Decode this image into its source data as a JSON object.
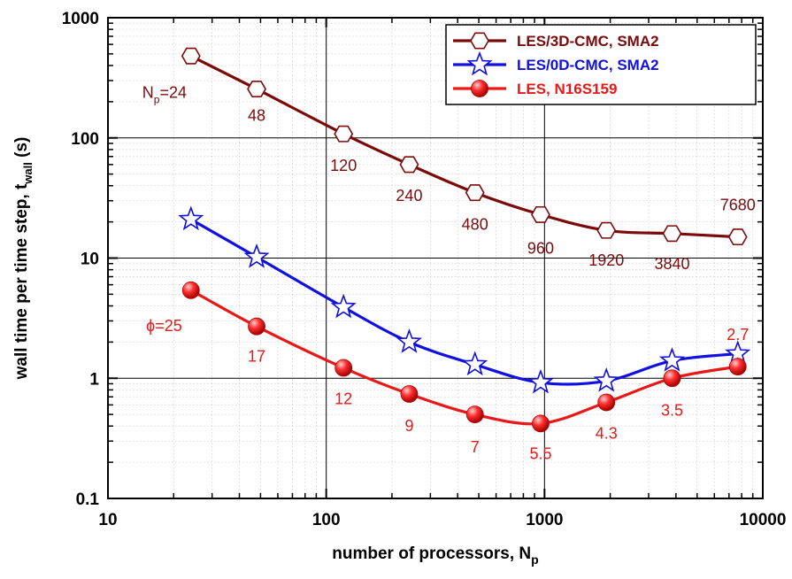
{
  "chart_data": {
    "type": "line",
    "x_scale": "log",
    "y_scale": "log",
    "xlim": [
      10,
      10000
    ],
    "ylim": [
      0.1,
      1000
    ],
    "grid": true,
    "legend_position": "top-right",
    "x_ticks": [
      "10",
      "100",
      "1000",
      "10000"
    ],
    "y_ticks": [
      "0.1",
      "1",
      "10",
      "100",
      "1000"
    ],
    "xlabel": "number of processors, N",
    "xlabel_sub": "p",
    "ylabel": "wall time per time step, t",
    "ylabel_sub": "wall",
    "ylabel_unit": " (s)",
    "series": [
      {
        "name": "LES/3D-CMC, SMA2",
        "color": "#7b0b0b",
        "marker": "hexagon",
        "x": [
          24,
          48,
          120,
          240,
          480,
          960,
          1920,
          3840,
          7680
        ],
        "y": [
          480,
          255,
          108,
          60,
          35,
          23,
          17,
          16,
          15
        ]
      },
      {
        "name": "LES/0D-CMC, SMA2",
        "color": "#1010e0",
        "marker": "star",
        "x": [
          24,
          48,
          120,
          240,
          480,
          960,
          1920,
          3840,
          7680
        ],
        "y": [
          21,
          10.2,
          3.9,
          2.0,
          1.3,
          0.92,
          0.95,
          1.4,
          1.6
        ]
      },
      {
        "name": "LES, N16S159",
        "color": "#e81818",
        "marker": "sphere",
        "x": [
          24,
          48,
          120,
          240,
          480,
          960,
          1920,
          3840,
          7680
        ],
        "y": [
          5.4,
          2.7,
          1.22,
          0.74,
          0.5,
          0.42,
          0.63,
          1.0,
          1.25
        ]
      }
    ],
    "annotations_np": {
      "color": "#7b0b0b",
      "prefix_main": "N",
      "prefix_sub": "p",
      "prefix_rest": "=24",
      "labels": [
        "48",
        "120",
        "240",
        "480",
        "960",
        "1920",
        "3840",
        "7680"
      ]
    },
    "annotations_phi": {
      "color": "#e81818",
      "prefix": "ϕ=25",
      "labels": [
        "17",
        "12",
        "9",
        "7",
        "5.5",
        "4.3",
        "3.5",
        "2.7"
      ]
    }
  }
}
